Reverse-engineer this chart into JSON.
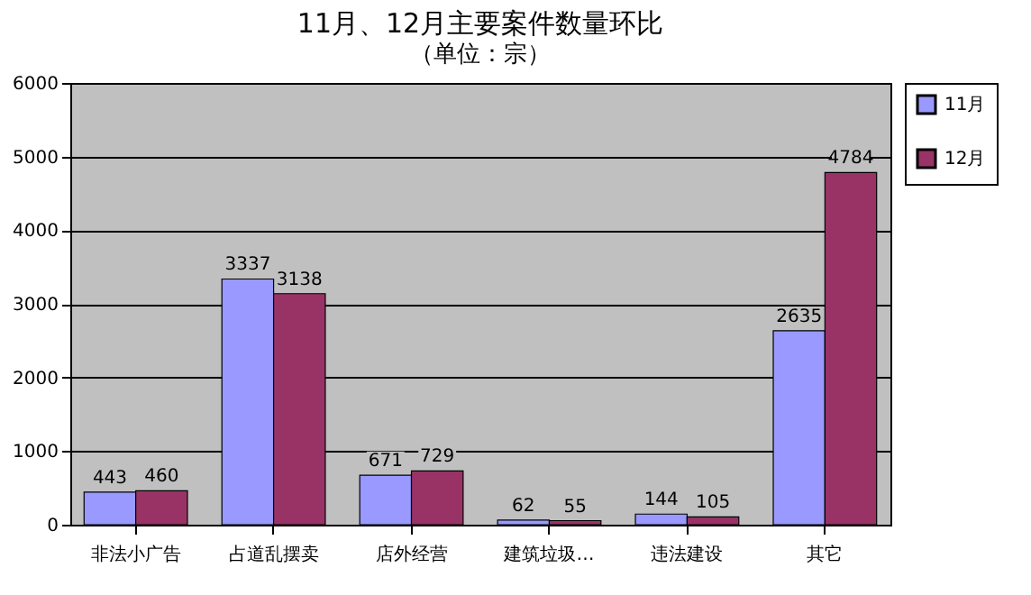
{
  "chart_data": {
    "type": "bar",
    "title": "11月、12月主要案件数量环比",
    "subtitle": "（单位：宗）",
    "categories": [
      "非法小广告",
      "占道乱摆卖",
      "店外经营",
      "建筑垃圾…",
      "违法建设",
      "其它"
    ],
    "series": [
      {
        "name": "11月",
        "color": "#9999ff",
        "values": [
          443,
          3337,
          671,
          62,
          144,
          2635
        ]
      },
      {
        "name": "12月",
        "color": "#993366",
        "values": [
          460,
          3138,
          729,
          55,
          105,
          4784
        ]
      }
    ],
    "ylim": [
      0,
      6000
    ],
    "yticks": [
      0,
      1000,
      2000,
      3000,
      4000,
      5000,
      6000
    ],
    "grid": "y",
    "legend": "right",
    "data_labels": true
  }
}
